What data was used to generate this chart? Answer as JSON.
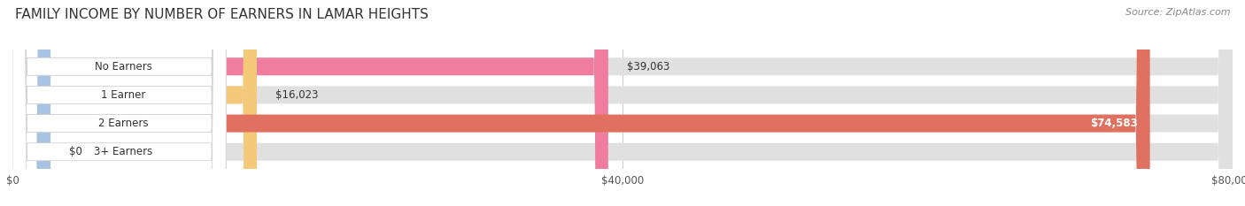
{
  "title": "FAMILY INCOME BY NUMBER OF EARNERS IN LAMAR HEIGHTS",
  "source": "Source: ZipAtlas.com",
  "categories": [
    "No Earners",
    "1 Earner",
    "2 Earners",
    "3+ Earners"
  ],
  "values": [
    39063,
    16023,
    74583,
    0
  ],
  "bar_colors": [
    "#f07ca0",
    "#f5c97a",
    "#e07060",
    "#a8c4e0"
  ],
  "bar_bg_color": "#e0e0e0",
  "xlim": [
    0,
    80000
  ],
  "xticks": [
    0,
    40000,
    80000
  ],
  "xtick_labels": [
    "$0",
    "$40,000",
    "$80,000"
  ],
  "figsize": [
    14.06,
    2.33
  ],
  "dpi": 100,
  "title_fontsize": 11,
  "bar_height": 0.62,
  "value_labels": [
    "$39,063",
    "$16,023",
    "$74,583",
    "$0"
  ],
  "stub_value": 2500,
  "bg_color": "#ffffff"
}
